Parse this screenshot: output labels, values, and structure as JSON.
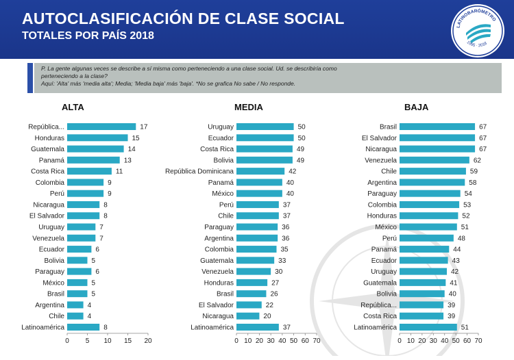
{
  "header": {
    "title": "AUTOCLASIFICACIÓN DE CLASE SOCIAL",
    "subtitle": "TOTALES POR PAÍS 2018",
    "logo_text": "LATINOBARÓMETRO",
    "logo_years": "1995 · 2018"
  },
  "question": {
    "line1": "P. La gente algunas veces se describe a sí misma como perteneciendo a una clase social. Ud. se describiría como",
    "line2": "perteneciendo a la clase?",
    "line3": "Aquí: 'Alta' más 'media alta'; Media; 'Media baja' más 'baja'. *No se grafica No sabe / No responde."
  },
  "colors": {
    "bar": "#2aa8c4",
    "header": "#1f3f9a",
    "question_bg": "#b9c0bd"
  },
  "chart_data": [
    {
      "type": "bar",
      "orientation": "horizontal",
      "title": "ALTA",
      "categories": [
        "República...",
        "Honduras",
        "Guatemala",
        "Panamá",
        "Costa Rica",
        "Colombia",
        "Perú",
        "Nicaragua",
        "El Salvador",
        "Uruguay",
        "Venezuela",
        "Ecuador",
        "Bolivia",
        "Paraguay",
        "México",
        "Brasil",
        "Argentina",
        "Chile",
        "Latinoamérica"
      ],
      "values": [
        17,
        15,
        14,
        13,
        11,
        9,
        9,
        8,
        8,
        7,
        7,
        6,
        5,
        6,
        5,
        5,
        4,
        4,
        8
      ],
      "xlim": [
        0,
        20
      ],
      "ticks": [
        0,
        5,
        10,
        15,
        20
      ]
    },
    {
      "type": "bar",
      "orientation": "horizontal",
      "title": "MEDIA",
      "categories": [
        "Uruguay",
        "Ecuador",
        "Costa Rica",
        "Bolivia",
        "República Dominicana",
        "Panamá",
        "México",
        "Perú",
        "Chile",
        "Paraguay",
        "Argentina",
        "Colombia",
        "Guatemala",
        "Venezuela",
        "Honduras",
        "Brasil",
        "El Salvador",
        "Nicaragua",
        "Latinoamérica"
      ],
      "values": [
        50,
        50,
        49,
        49,
        42,
        40,
        40,
        37,
        37,
        36,
        36,
        35,
        33,
        30,
        27,
        26,
        22,
        20,
        37
      ],
      "xlim": [
        0,
        70
      ],
      "ticks": [
        0,
        10,
        20,
        30,
        40,
        50,
        60,
        70
      ]
    },
    {
      "type": "bar",
      "orientation": "horizontal",
      "title": "BAJA",
      "categories": [
        "Brasil",
        "El Salvador",
        "Nicaragua",
        "Venezuela",
        "Chile",
        "Argentina",
        "Paraguay",
        "Colombia",
        "Honduras",
        "México",
        "Perú",
        "Panamá",
        "Ecuador",
        "Uruguay",
        "Guatemala",
        "Bolivia",
        "República...",
        "Costa Rica",
        "Latinoamérica"
      ],
      "values": [
        67,
        67,
        67,
        62,
        59,
        58,
        54,
        53,
        52,
        51,
        48,
        44,
        43,
        42,
        41,
        40,
        39,
        39,
        51
      ],
      "xlim": [
        0,
        70
      ],
      "ticks": [
        0,
        10,
        20,
        30,
        40,
        50,
        60,
        70
      ]
    }
  ]
}
